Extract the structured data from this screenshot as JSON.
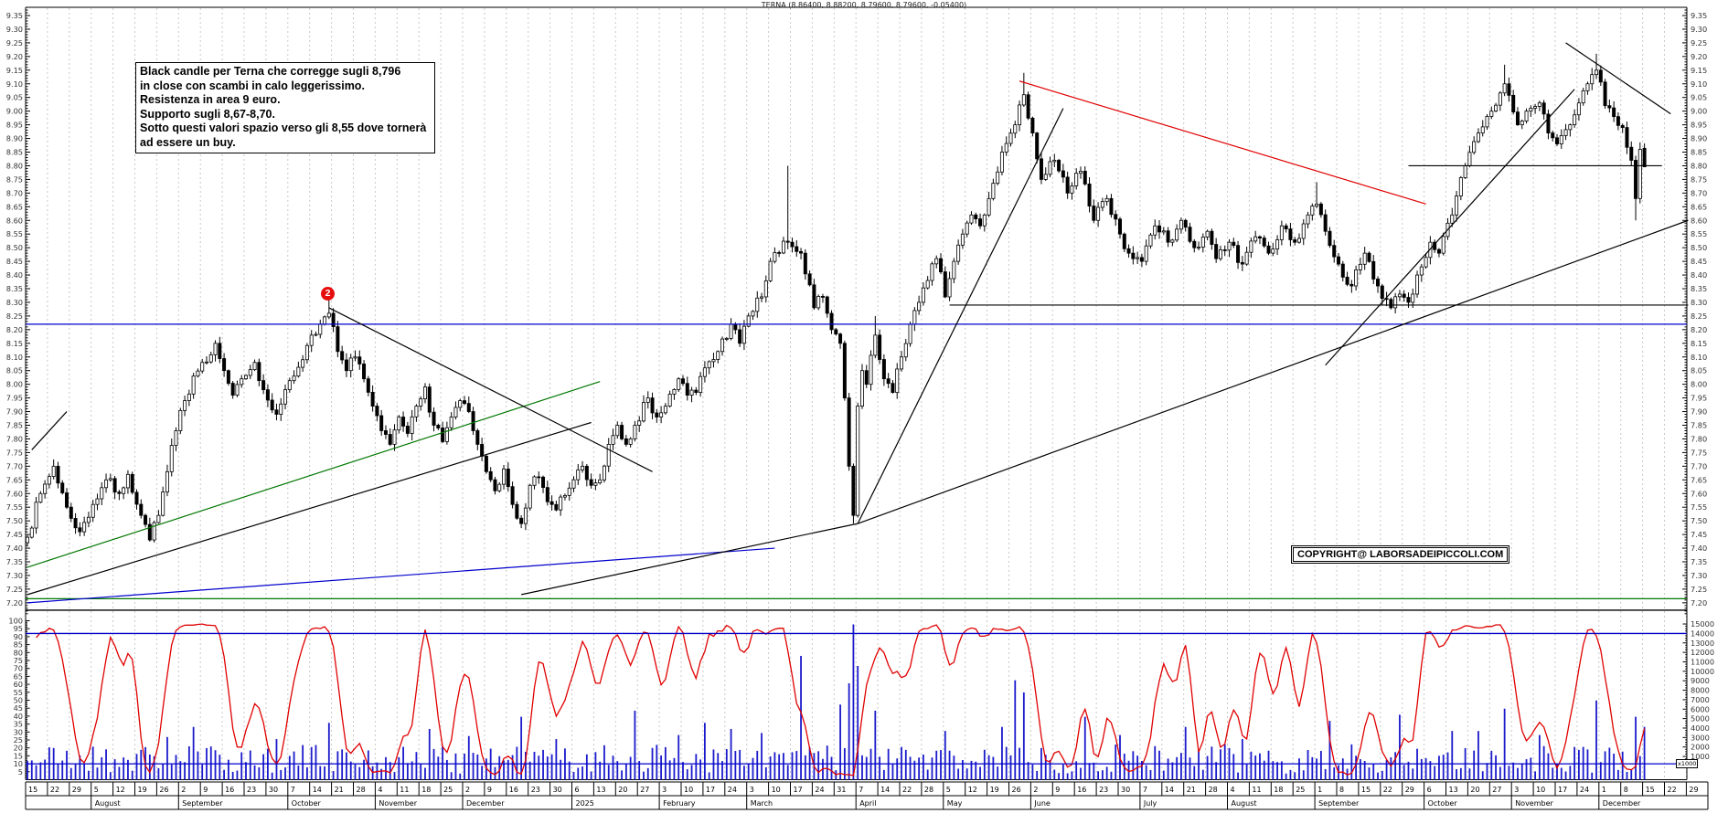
{
  "title": "TERNA (8.86400, 8.88200, 8.79600, 8.79600, -0.05400)",
  "annotation": {
    "lines": [
      "Black candle per Terna che corregge sugli 8,796",
      "in close con scambi in calo leggerissimo.",
      "Resistenza in area 9 euro.",
      "Supporto sugli 8,67-8,70.",
      "Sotto questi valori spazio verso gli 8,55 dove tornerà",
      "ad essere un buy."
    ]
  },
  "copyright": {
    "text": "COPYRIGHT@ LABORSADEIPICCOLI.COM"
  },
  "marker": {
    "label": "2",
    "color": "#e60d0d"
  },
  "colors": {
    "candle": "#000000",
    "candle_up_fill": "#ffffff",
    "candle_down_fill": "#000000",
    "volume": "#1a1acc",
    "oscillator": "#e00000",
    "level_blue": "#0000cc",
    "level_green": "#007700",
    "grid": "#c9c9c9",
    "axis": "#000000",
    "label": "#333333"
  },
  "chart_data": {
    "type": "candlestick+oscillator+volume",
    "instrument": "TERNA",
    "last_bar": {
      "open": 8.864,
      "high": 8.882,
      "low": 8.796,
      "close": 8.796,
      "change": -0.054
    },
    "price_axis": {
      "min": 7.15,
      "max": 9.4,
      "label_min": 7.2,
      "label_max": 9.35,
      "label_step": 0.05,
      "minor_step": 0.01
    },
    "oscillator_axis": {
      "min": 0,
      "max": 100,
      "label_step": 5,
      "minor_step": 1
    },
    "volume_axis": {
      "min": 0,
      "max": 15000,
      "label_step": 1000,
      "unit": "x1000"
    },
    "n_bars": 371,
    "price_waypoints": [
      [
        0,
        7.44
      ],
      [
        3,
        7.6
      ],
      [
        6,
        7.7
      ],
      [
        9,
        7.55
      ],
      [
        12,
        7.46
      ],
      [
        15,
        7.56
      ],
      [
        18,
        7.65
      ],
      [
        21,
        7.6
      ],
      [
        23,
        7.67
      ],
      [
        26,
        7.52
      ],
      [
        28,
        7.43
      ],
      [
        30,
        7.52
      ],
      [
        32,
        7.68
      ],
      [
        34,
        7.83
      ],
      [
        36,
        7.94
      ],
      [
        38,
        8.03
      ],
      [
        40,
        8.08
      ],
      [
        43,
        8.15
      ],
      [
        45,
        8.05
      ],
      [
        47,
        7.96
      ],
      [
        49,
        8.02
      ],
      [
        52,
        8.08
      ],
      [
        54,
        7.98
      ],
      [
        57,
        7.89
      ],
      [
        59,
        7.98
      ],
      [
        61,
        8.03
      ],
      [
        63,
        8.09
      ],
      [
        65,
        8.18
      ],
      [
        67,
        8.22
      ],
      [
        69,
        8.26
      ],
      [
        71,
        8.12
      ],
      [
        73,
        8.05
      ],
      [
        75,
        8.1
      ],
      [
        77,
        8.02
      ],
      [
        79,
        7.92
      ],
      [
        81,
        7.83
      ],
      [
        83,
        7.78
      ],
      [
        85,
        7.88
      ],
      [
        87,
        7.82
      ],
      [
        89,
        7.92
      ],
      [
        91,
        7.99
      ],
      [
        93,
        7.85
      ],
      [
        95,
        7.79
      ],
      [
        97,
        7.88
      ],
      [
        99,
        7.94
      ],
      [
        101,
        7.9
      ],
      [
        103,
        7.78
      ],
      [
        105,
        7.68
      ],
      [
        107,
        7.61
      ],
      [
        109,
        7.69
      ],
      [
        111,
        7.56
      ],
      [
        113,
        7.49
      ],
      [
        115,
        7.63
      ],
      [
        117,
        7.66
      ],
      [
        119,
        7.57
      ],
      [
        121,
        7.54
      ],
      [
        124,
        7.62
      ],
      [
        127,
        7.7
      ],
      [
        129,
        7.63
      ],
      [
        131,
        7.65
      ],
      [
        133,
        7.78
      ],
      [
        135,
        7.85
      ],
      [
        137,
        7.78
      ],
      [
        139,
        7.85
      ],
      [
        142,
        7.95
      ],
      [
        144,
        7.88
      ],
      [
        146,
        7.92
      ],
      [
        149,
        8.02
      ],
      [
        151,
        7.96
      ],
      [
        153,
        7.97
      ],
      [
        155,
        8.06
      ],
      [
        158,
        8.12
      ],
      [
        161,
        8.22
      ],
      [
        163,
        8.15
      ],
      [
        165,
        8.25
      ],
      [
        168,
        8.32
      ],
      [
        170,
        8.45
      ],
      [
        174,
        8.52
      ],
      [
        177,
        8.48
      ],
      [
        180,
        8.28
      ],
      [
        182,
        8.32
      ],
      [
        184,
        8.2
      ],
      [
        186,
        8.15
      ],
      [
        187,
        7.95
      ],
      [
        188,
        7.7
      ],
      [
        189,
        7.52
      ],
      [
        190,
        7.92
      ],
      [
        191,
        8.05
      ],
      [
        192,
        8.0
      ],
      [
        194,
        8.18
      ],
      [
        196,
        8.02
      ],
      [
        198,
        7.97
      ],
      [
        200,
        8.1
      ],
      [
        202,
        8.22
      ],
      [
        204,
        8.3
      ],
      [
        206,
        8.38
      ],
      [
        208,
        8.46
      ],
      [
        210,
        8.32
      ],
      [
        212,
        8.45
      ],
      [
        214,
        8.55
      ],
      [
        216,
        8.62
      ],
      [
        218,
        8.58
      ],
      [
        220,
        8.68
      ],
      [
        223,
        8.85
      ],
      [
        226,
        8.95
      ],
      [
        228,
        9.06
      ],
      [
        230,
        8.92
      ],
      [
        232,
        8.75
      ],
      [
        235,
        8.82
      ],
      [
        238,
        8.7
      ],
      [
        241,
        8.78
      ],
      [
        244,
        8.6
      ],
      [
        247,
        8.68
      ],
      [
        250,
        8.55
      ],
      [
        252,
        8.48
      ],
      [
        255,
        8.45
      ],
      [
        258,
        8.58
      ],
      [
        261,
        8.52
      ],
      [
        264,
        8.6
      ],
      [
        267,
        8.5
      ],
      [
        270,
        8.56
      ],
      [
        272,
        8.46
      ],
      [
        275,
        8.52
      ],
      [
        278,
        8.44
      ],
      [
        281,
        8.54
      ],
      [
        284,
        8.48
      ],
      [
        287,
        8.58
      ],
      [
        290,
        8.52
      ],
      [
        293,
        8.62
      ],
      [
        295,
        8.66
      ],
      [
        297,
        8.56
      ],
      [
        300,
        8.44
      ],
      [
        303,
        8.36
      ],
      [
        306,
        8.48
      ],
      [
        309,
        8.36
      ],
      [
        312,
        8.28
      ],
      [
        314,
        8.33
      ],
      [
        316,
        8.3
      ],
      [
        318,
        8.4
      ],
      [
        321,
        8.52
      ],
      [
        323,
        8.48
      ],
      [
        326,
        8.62
      ],
      [
        329,
        8.8
      ],
      [
        332,
        8.92
      ],
      [
        335,
        9.0
      ],
      [
        338,
        9.1
      ],
      [
        341,
        8.95
      ],
      [
        343,
        9.0
      ],
      [
        346,
        9.03
      ],
      [
        348,
        8.92
      ],
      [
        350,
        8.88
      ],
      [
        353,
        8.95
      ],
      [
        355,
        9.03
      ],
      [
        357,
        9.1
      ],
      [
        359,
        9.15
      ],
      [
        361,
        9.02
      ],
      [
        363,
        8.98
      ],
      [
        365,
        8.94
      ],
      [
        367,
        8.82
      ],
      [
        368,
        8.68
      ],
      [
        369,
        8.86
      ],
      [
        370,
        8.796
      ]
    ],
    "bar_overrides": {
      "69": {
        "h": 8.31
      },
      "174": {
        "h": 8.8
      },
      "189": {
        "l": 7.49
      },
      "194": {
        "h": 8.25
      },
      "228": {
        "h": 9.14
      },
      "295": {
        "h": 8.74
      },
      "338": {
        "h": 9.17
      },
      "359": {
        "h": 9.21
      },
      "368": {
        "l": 8.6
      },
      "370": {
        "o": 8.864,
        "h": 8.882,
        "l": 8.796,
        "c": 8.796
      }
    },
    "volume_spikes": {
      "32": 4200,
      "38": 5200,
      "57": 4000,
      "69": 5600,
      "92": 5000,
      "101": 4300,
      "113": 6200,
      "121": 4000,
      "139": 6800,
      "149": 4400,
      "155": 5600,
      "161": 5000,
      "168": 4600,
      "177": 12200,
      "186": 7400,
      "188": 9500,
      "189": 15300,
      "190": 11200,
      "194": 6800,
      "210": 4800,
      "223": 5200,
      "226": 9800,
      "228": 8600,
      "242": 6200,
      "250": 4400,
      "265": 5200,
      "278": 4000,
      "298": 5800,
      "314": 6400,
      "326": 4800,
      "332": 4800,
      "338": 7000,
      "346": 4400,
      "359": 7800,
      "368": 6200,
      "370": 5200
    },
    "price_hlines": [
      {
        "price": 8.22,
        "color": "#0000cc"
      },
      {
        "price": 7.215,
        "color": "#007700"
      },
      {
        "price": 7.173,
        "color": "#000000"
      }
    ],
    "trendlines": [
      {
        "name": "far-left-support",
        "b1": 1,
        "p1": 7.76,
        "b2": 9,
        "p2": 7.9,
        "color": "#000000"
      },
      {
        "name": "green-rising-support",
        "b1": 0,
        "p1": 7.33,
        "b2": 131,
        "p2": 8.01,
        "color": "#007700"
      },
      {
        "name": "long-rising-support",
        "b1": 0,
        "p1": 7.23,
        "b2": 129,
        "p2": 7.86,
        "color": "#000000"
      },
      {
        "name": "wave2-descending",
        "b1": 69,
        "p1": 8.28,
        "b2": 143,
        "p2": 7.68,
        "color": "#000000"
      },
      {
        "name": "blue-flat-support",
        "b1": 0,
        "p1": 7.2,
        "b2": 171,
        "p2": 7.4,
        "color": "#0000cc"
      },
      {
        "name": "dec-to-april-support",
        "b1": 113,
        "p1": 7.23,
        "b2": 190,
        "p2": 7.49,
        "color": "#000000"
      },
      {
        "name": "april-steep-rally",
        "b1": 190,
        "p1": 7.49,
        "b2": 237,
        "p2": 9.01,
        "color": "#000000"
      },
      {
        "name": "april-long-support",
        "b1": 190,
        "p1": 7.49,
        "b2": 380,
        "p2": 8.6,
        "color": "#000000"
      },
      {
        "name": "october-rally-support",
        "b1": 297,
        "p1": 8.07,
        "b2": 354,
        "p2": 9.08,
        "color": "#000000"
      },
      {
        "name": "top-right-descending",
        "b1": 352,
        "p1": 9.25,
        "b2": 376,
        "p2": 8.99,
        "color": "#000000"
      },
      {
        "name": "red-descending-june",
        "b1": 227,
        "p1": 9.11,
        "b2": 320,
        "p2": 8.66,
        "color": "#e00000"
      },
      {
        "name": "resistance-8-80",
        "b1": 316,
        "p1": 8.8,
        "b2": 374,
        "p2": 8.8,
        "color": "#000000"
      },
      {
        "name": "support-8-29",
        "b1": 211,
        "p1": 8.29,
        "b2": 380,
        "p2": 8.29,
        "color": "#000000"
      }
    ],
    "oscillator_hlines": [
      {
        "value": 92
      },
      {
        "value": 10
      }
    ],
    "weeks": [
      "15",
      "22",
      "29",
      "5",
      "12",
      "19",
      "26",
      "2",
      "9",
      "16",
      "23",
      "30",
      "7",
      "14",
      "21",
      "28",
      "4",
      "11",
      "18",
      "25",
      "2",
      "9",
      "16",
      "23",
      "30",
      "6",
      "13",
      "20",
      "27",
      "3",
      "10",
      "17",
      "24",
      "3",
      "10",
      "17",
      "24",
      "31",
      "7",
      "14",
      "22",
      "28",
      "5",
      "12",
      "19",
      "26",
      "2",
      "9",
      "16",
      "23",
      "30",
      "7",
      "14",
      "21",
      "28",
      "4",
      "11",
      "18",
      "25",
      "1",
      "8",
      "15",
      "22",
      "29",
      "6",
      "13",
      "20",
      "27",
      "3",
      "10",
      "17",
      "24",
      "1",
      "8",
      "15",
      "22",
      "29"
    ],
    "months": [
      [
        "",
        3
      ],
      [
        "August",
        4
      ],
      [
        "September",
        5
      ],
      [
        "October",
        4
      ],
      [
        "November",
        4
      ],
      [
        "December",
        5
      ],
      [
        "2025",
        4
      ],
      [
        "February",
        4
      ],
      [
        "March",
        5
      ],
      [
        "April",
        4
      ],
      [
        "May",
        4
      ],
      [
        "June",
        5
      ],
      [
        "July",
        4
      ],
      [
        "August",
        4
      ],
      [
        "September",
        5
      ],
      [
        "October",
        4
      ],
      [
        "November",
        4
      ],
      [
        "December",
        5
      ]
    ]
  }
}
